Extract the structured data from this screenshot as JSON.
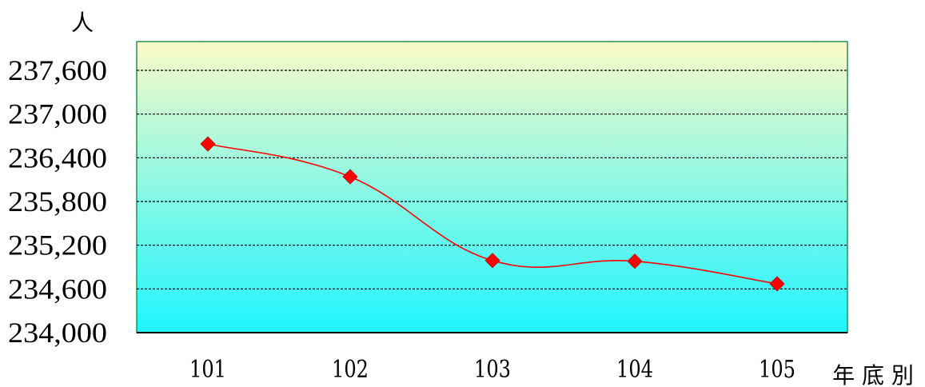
{
  "chart_data": {
    "type": "line",
    "x": [
      "101",
      "102",
      "103",
      "104",
      "105"
    ],
    "series": [
      {
        "values": [
          236590,
          236140,
          234990,
          234980,
          234670
        ]
      }
    ],
    "ylim": [
      234000,
      237600
    ],
    "yticks": [
      "234,000",
      "234,600",
      "235,200",
      "235,800",
      "236,400",
      "237,000",
      "237,600"
    ],
    "xlabel": "年 底 別",
    "ylabel": "人",
    "grid": true,
    "colors": {
      "line": "#ff0000",
      "marker": "#ff0000",
      "plot_bg_top": "#fbfbc8",
      "plot_bg_bottom": "#1ff5ff",
      "plot_border": "#2e8b57",
      "gridline": "#000000"
    }
  }
}
